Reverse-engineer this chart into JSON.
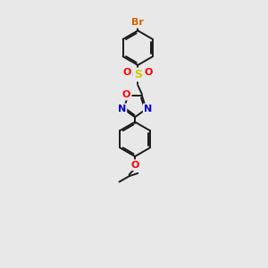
{
  "background_color": "#e8e8e8",
  "bond_color": "#1a1a1a",
  "atom_colors": {
    "Br": "#cc6600",
    "S": "#cccc00",
    "O": "#ff0000",
    "N": "#0000cc",
    "C": "#1a1a1a"
  },
  "fig_width": 3.0,
  "fig_height": 3.0,
  "dpi": 100,
  "bond_lw": 1.4,
  "double_sep": 0.08,
  "font_size": 7.5
}
